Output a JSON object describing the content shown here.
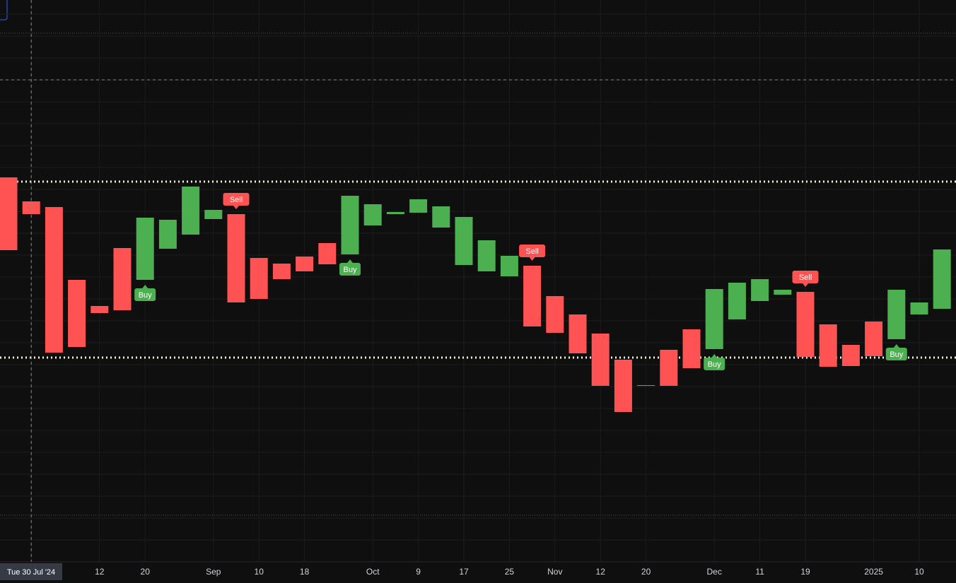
{
  "chart_data": {
    "type": "candlestick",
    "categories": [
      null,
      "Tue 30 Jul '24",
      null,
      null,
      "12",
      null,
      "20",
      null,
      null,
      "Sep",
      null,
      "10",
      null,
      "18",
      null,
      null,
      "Oct",
      null,
      "9",
      null,
      "17",
      null,
      "25",
      null,
      "Nov",
      null,
      "12",
      null,
      "20",
      null,
      null,
      "Dec",
      null,
      "11",
      null,
      "19",
      null,
      null,
      "2025",
      null,
      "10",
      null
    ],
    "open": [
      549,
      515,
      507,
      404,
      367,
      449,
      404,
      448,
      468,
      490,
      497,
      435,
      427,
      437,
      456,
      440,
      481,
      497,
      499,
      478,
      425,
      416,
      409,
      424,
      381,
      355,
      328,
      291,
      255,
      305,
      334,
      306,
      348,
      374,
      383,
      387,
      341,
      312,
      345,
      320,
      355,
      363
    ],
    "close": [
      446,
      497,
      301,
      309,
      357,
      361,
      492,
      489,
      536,
      503,
      372,
      377,
      405,
      416,
      426,
      523,
      511,
      500,
      518,
      508,
      493,
      460,
      438,
      338,
      329,
      300,
      254,
      217,
      254,
      254,
      279,
      391,
      400,
      405,
      390,
      295,
      281,
      282,
      296,
      390,
      372,
      447
    ],
    "up_color": "#4caf50",
    "down_color": "#ff5252",
    "levels": [
      543,
      294
    ],
    "crosshair": {
      "index": 1,
      "value": 687
    },
    "signals": [
      {
        "index": 6,
        "label": "Buy"
      },
      {
        "index": 10,
        "label": "Sell"
      },
      {
        "index": 15,
        "label": "Buy"
      },
      {
        "index": 23,
        "label": "Sell"
      },
      {
        "index": 31,
        "label": "Buy"
      },
      {
        "index": 35,
        "label": "Sell"
      },
      {
        "index": 39,
        "label": "Buy"
      }
    ]
  }
}
